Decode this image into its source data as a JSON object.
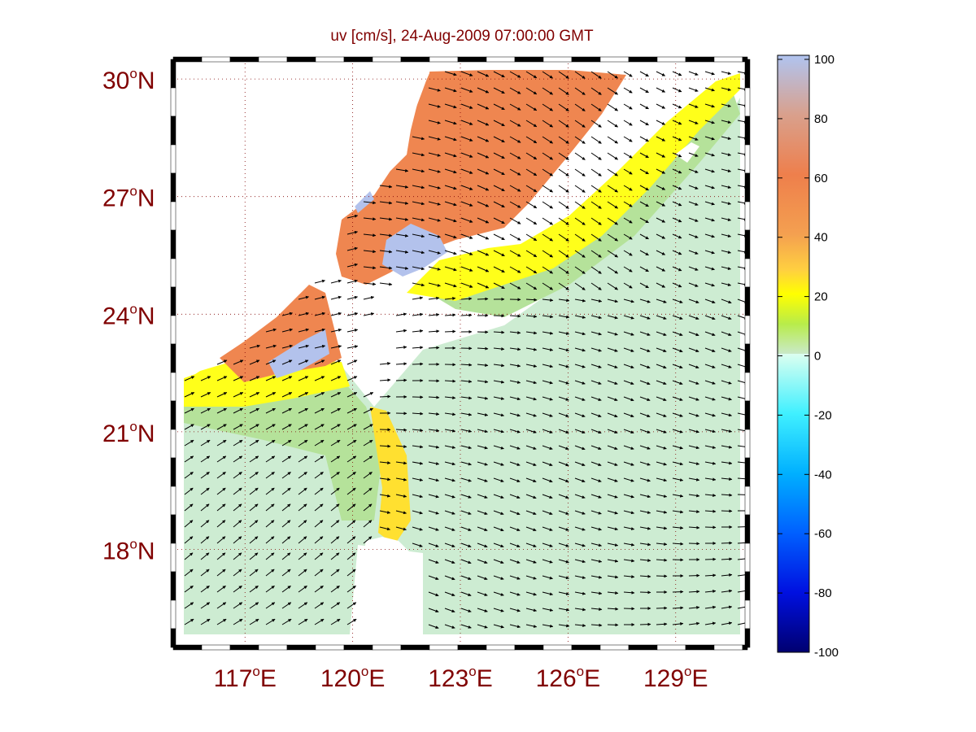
{
  "title": "uv [cm/s], 24-Aug-2009 07:00:00 GMT",
  "map": {
    "lon_range": [
      115,
      131
    ],
    "lat_range": [
      15.5,
      30.5
    ],
    "lat_ticks": [
      {
        "value": 30,
        "deg": "30",
        "hemi": "N"
      },
      {
        "value": 27,
        "deg": "27",
        "hemi": "N"
      },
      {
        "value": 24,
        "deg": "24",
        "hemi": "N"
      },
      {
        "value": 21,
        "deg": "21",
        "hemi": "N"
      },
      {
        "value": 18,
        "deg": "18",
        "hemi": "N"
      }
    ],
    "lon_ticks": [
      {
        "value": 117,
        "deg": "117",
        "hemi": "E"
      },
      {
        "value": 120,
        "deg": "120",
        "hemi": "E"
      },
      {
        "value": 123,
        "deg": "123",
        "hemi": "E"
      },
      {
        "value": 126,
        "deg": "126",
        "hemi": "E"
      },
      {
        "value": 129,
        "deg": "129",
        "hemi": "E"
      }
    ],
    "grid": "dotted",
    "grid_color": "#800000",
    "label_color": "#800000",
    "land_color": "#ffffff",
    "arrow_color": "#000000"
  },
  "colorbar": {
    "range": [
      -100,
      100
    ],
    "ticks": [
      "100",
      "80",
      "60",
      "40",
      "20",
      "0",
      "-20",
      "-40",
      "-60",
      "-80",
      "-100"
    ]
  }
}
